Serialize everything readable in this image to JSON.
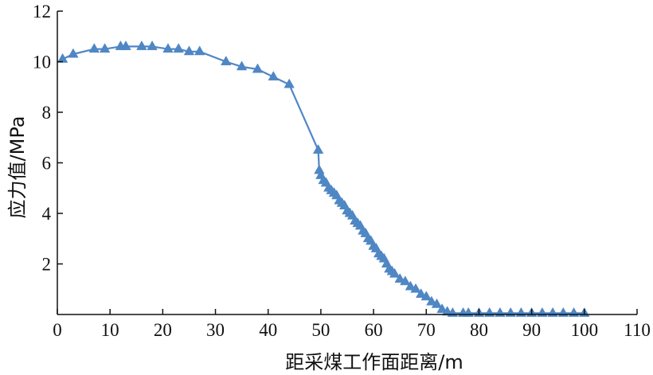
{
  "chart_data": {
    "type": "line",
    "title": "",
    "xlabel": "距采煤工作面距离/m",
    "ylabel": "应力值/MPa",
    "xlim": [
      0,
      110
    ],
    "ylim": [
      0,
      12
    ],
    "x_ticks": [
      "0",
      "10",
      "20",
      "30",
      "40",
      "50",
      "60",
      "70",
      "80",
      "90",
      "100",
      "110"
    ],
    "y_ticks": [
      "2",
      "4",
      "6",
      "8",
      "10",
      "12"
    ],
    "grid": false,
    "legend": "none",
    "series": [
      {
        "color": "#4f87c4",
        "marker": "triangle",
        "x": [
          1,
          3,
          7,
          9,
          12,
          13,
          16,
          18,
          21,
          23,
          25,
          27,
          32,
          35,
          38,
          41,
          44,
          49.5,
          49.7,
          50,
          50.5,
          51,
          51.5,
          52,
          52.5,
          53,
          53.5,
          54,
          54.5,
          55,
          55.5,
          56,
          56.5,
          57,
          57.5,
          58,
          58.5,
          59,
          59.5,
          60,
          60.5,
          61,
          61.5,
          62,
          62.5,
          63,
          63.5,
          64,
          65,
          66,
          67,
          68,
          69,
          70,
          71,
          72,
          73,
          74,
          75,
          77,
          78,
          80,
          82,
          84,
          86,
          88,
          90,
          92,
          94,
          96,
          98,
          100
        ],
        "y": [
          10.1,
          10.3,
          10.5,
          10.5,
          10.6,
          10.6,
          10.6,
          10.6,
          10.5,
          10.5,
          10.4,
          10.4,
          10.0,
          9.8,
          9.7,
          9.4,
          9.1,
          6.5,
          5.7,
          5.5,
          5.3,
          5.2,
          5.0,
          4.9,
          4.8,
          4.7,
          4.5,
          4.4,
          4.3,
          4.1,
          4.0,
          3.9,
          3.7,
          3.6,
          3.5,
          3.3,
          3.2,
          3.0,
          2.9,
          2.7,
          2.6,
          2.4,
          2.3,
          2.2,
          2.0,
          1.8,
          1.7,
          1.6,
          1.4,
          1.3,
          1.1,
          1.0,
          0.8,
          0.7,
          0.5,
          0.4,
          0.2,
          0.1,
          0.05,
          0.05,
          0.05,
          0.05,
          0.05,
          0.05,
          0.05,
          0.05,
          0.05,
          0.05,
          0.05,
          0.05,
          0.05,
          0.05
        ]
      }
    ]
  }
}
